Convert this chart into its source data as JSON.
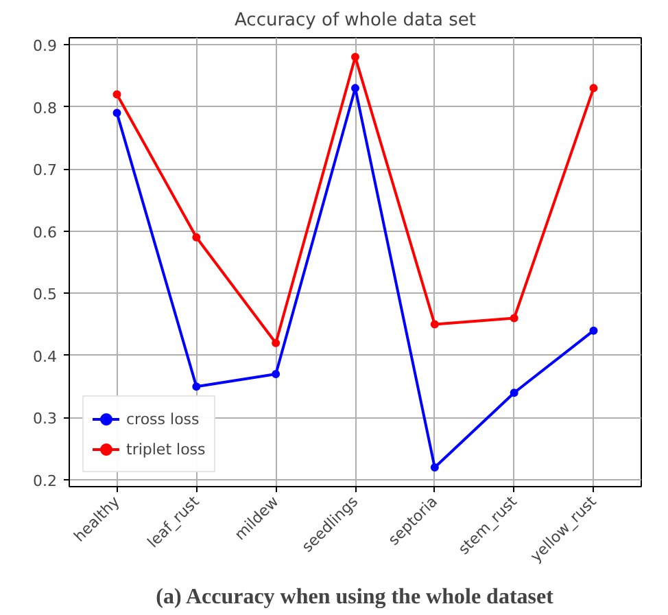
{
  "chart_data": {
    "type": "line",
    "title": "Accuracy of whole data set",
    "categories": [
      "healthy",
      "leaf_rust",
      "mildew",
      "seedlings",
      "septoria",
      "stem_rust",
      "yellow_rust"
    ],
    "series": [
      {
        "name": "cross loss",
        "color": "#0000ff",
        "values": [
          0.79,
          0.35,
          0.37,
          0.83,
          0.22,
          0.34,
          0.44
        ]
      },
      {
        "name": "triplet loss",
        "color": "#ff0000",
        "values": [
          0.82,
          0.59,
          0.42,
          0.88,
          0.45,
          0.46,
          0.83
        ]
      }
    ],
    "ylim": [
      0.189,
      0.911
    ],
    "yticks": [
      0.2,
      0.3,
      0.4,
      0.5,
      0.6,
      0.7,
      0.8,
      0.9
    ],
    "grid": true,
    "legend": "bottom left",
    "marker": "circle",
    "line_style": "solid",
    "annotations": [
      "(a) Accuracy when using the whole dataset"
    ]
  }
}
